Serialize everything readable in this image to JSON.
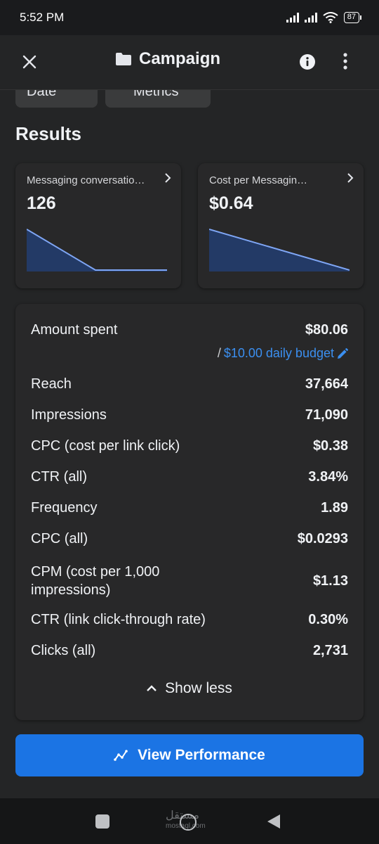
{
  "status_bar": {
    "time": "5:52 PM",
    "battery": "87"
  },
  "app_bar": {
    "title": "Campaign"
  },
  "filter_chips": [
    {
      "label": "Date"
    },
    {
      "label": "Metrics"
    }
  ],
  "results": {
    "heading": "Results",
    "cards": [
      {
        "label": "Messaging conversatio…",
        "value": "126",
        "trend": [
          1.0,
          0.0,
          0.0
        ]
      },
      {
        "label": "Cost per Messagin…",
        "value": "$0.64",
        "trend": [
          1.0,
          0.0
        ]
      }
    ]
  },
  "details": {
    "amount_spent_label": "Amount spent",
    "amount_spent_value": "$80.06",
    "budget_prefix": "/",
    "budget_link": "$10.00 daily budget",
    "rows": [
      {
        "label": "Reach",
        "value": "37,664"
      },
      {
        "label": "Impressions",
        "value": "71,090"
      },
      {
        "label": "CPC (cost per link click)",
        "value": "$0.38"
      },
      {
        "label": "CTR (all)",
        "value": "3.84%"
      },
      {
        "label": "Frequency",
        "value": "1.89"
      },
      {
        "label": "CPC (all)",
        "value": "$0.0293"
      },
      {
        "label": "CPM (cost per 1,000 impressions)",
        "value": "$1.13"
      },
      {
        "label": "CTR (link click-through rate)",
        "value": "0.30%"
      },
      {
        "label": "Clicks (all)",
        "value": "2,731"
      }
    ],
    "show_less": "Show less"
  },
  "cta": {
    "label": "View Performance"
  },
  "watermark": {
    "text": "مستقل",
    "sub": "mostaql.com"
  },
  "colors": {
    "accent": "#1b74e4",
    "link": "#3b8ff0",
    "spark_line": "#7fa6f5",
    "spark_fill": "#233a66"
  }
}
